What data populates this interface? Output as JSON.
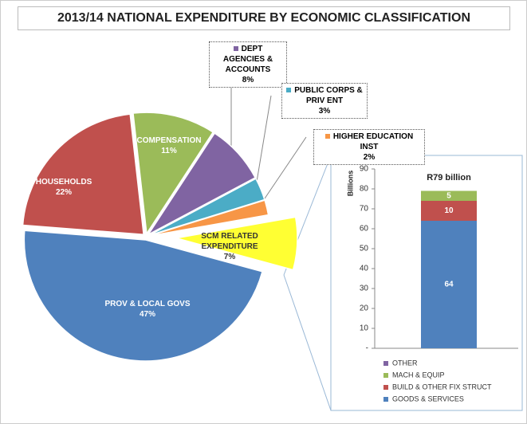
{
  "chart_data": [
    {
      "type": "pie",
      "title": "2013/14 NATIONAL EXPENDITURE BY ECONOMIC CLASSIFICATION",
      "categories": [
        "SCM RELATED EXPENDITURE",
        "PROV & LOCAL GOVS",
        "HOUSEHOLDS",
        "COMPENSATION",
        "DEPT AGENCIES & ACCOUNTS",
        "PUBLIC CORPS & PRIV ENT",
        "HIGHER EDUCATION INST"
      ],
      "values": [
        7,
        47,
        22,
        11,
        8,
        3,
        2
      ],
      "value_labels": [
        "7%",
        "47%",
        "22%",
        "11%",
        "8%",
        "3%",
        "2%"
      ],
      "colors": [
        "#ffff33",
        "#4f81bd",
        "#c0504d",
        "#9bbb59",
        "#8064a2",
        "#4bacc6",
        "#f79646"
      ]
    },
    {
      "type": "bar",
      "title": "R79 billion",
      "y_label": "Billions",
      "ylim": [
        0,
        90
      ],
      "yticks": [
        {
          "value": 0,
          "label": "-"
        },
        10,
        20,
        30,
        40,
        50,
        60,
        70,
        80,
        90
      ],
      "series": [
        {
          "name": "GOODS & SERVICES",
          "color": "#4f81bd",
          "values": [
            64
          ]
        },
        {
          "name": "BUILD & OTHER FIX STRUCT",
          "color": "#c0504d",
          "values": [
            10
          ]
        },
        {
          "name": "MACH & EQUIP",
          "color": "#9bbb59",
          "values": [
            5
          ]
        },
        {
          "name": "OTHER",
          "color": "#8064a2",
          "values": [
            0
          ]
        }
      ]
    }
  ]
}
